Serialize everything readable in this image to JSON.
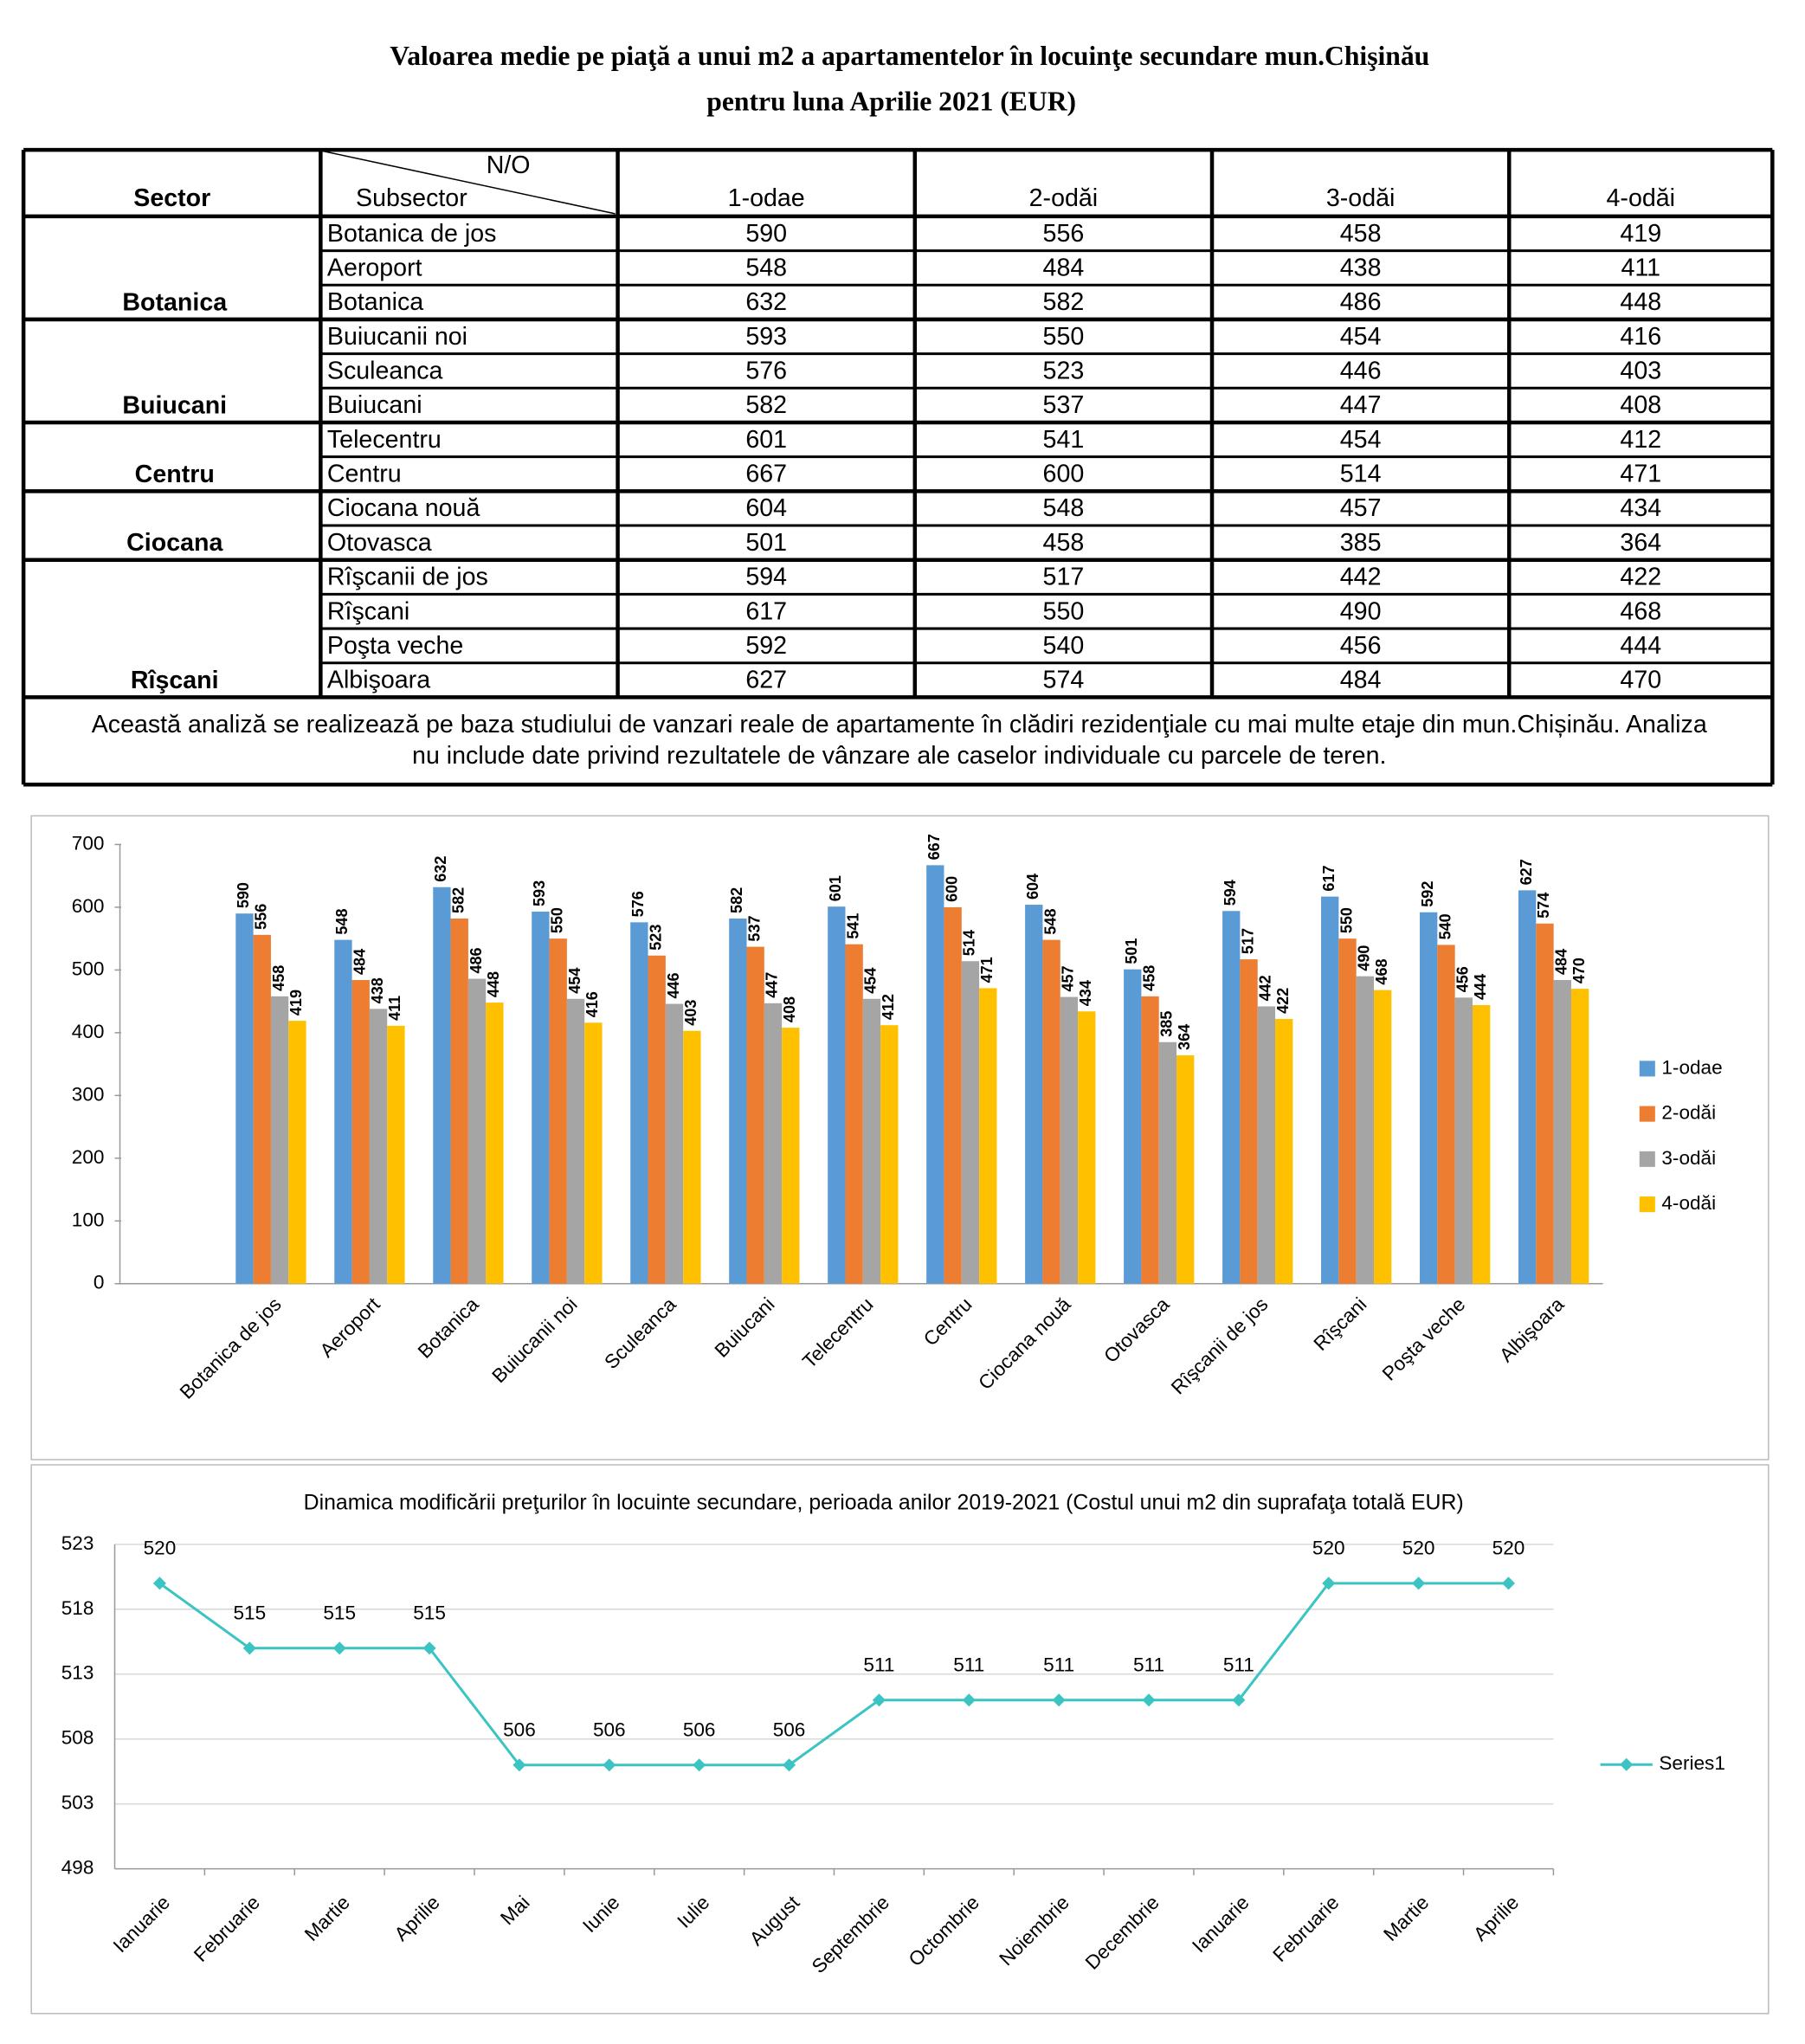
{
  "title": [
    "Valoarea medie pe piaţă a unui m2 a apartamentelor în locuinţe secundare  mun.Chişinău",
    "pentru luna Aprilie 2021 (EUR)"
  ],
  "table": {
    "header": {
      "sector": "Sector",
      "no": "N/O",
      "subsector": "Subsector",
      "columns": [
        "1-odae",
        "2-odăi",
        "3-odăi",
        "4-odăi"
      ]
    },
    "groups": [
      {
        "sector": "Botanica",
        "rows": [
          {
            "name": "Botanica de jos",
            "values": [
              590,
              556,
              458,
              419
            ]
          },
          {
            "name": "Aeroport",
            "values": [
              548,
              484,
              438,
              411
            ]
          },
          {
            "name": "Botanica",
            "values": [
              632,
              582,
              486,
              448
            ]
          }
        ]
      },
      {
        "sector": "Buiucani",
        "rows": [
          {
            "name": "Buiucanii noi",
            "values": [
              593,
              550,
              454,
              416
            ]
          },
          {
            "name": "Sculeanca",
            "values": [
              576,
              523,
              446,
              403
            ]
          },
          {
            "name": "Buiucani",
            "values": [
              582,
              537,
              447,
              408
            ]
          }
        ]
      },
      {
        "sector": "Centru",
        "rows": [
          {
            "name": "Telecentru",
            "values": [
              601,
              541,
              454,
              412
            ]
          },
          {
            "name": "Centru",
            "values": [
              667,
              600,
              514,
              471
            ]
          }
        ]
      },
      {
        "sector": "Ciocana",
        "rows": [
          {
            "name": "Ciocana nouă",
            "values": [
              604,
              548,
              457,
              434
            ]
          },
          {
            "name": "Otovasca",
            "values": [
              501,
              458,
              385,
              364
            ]
          }
        ]
      },
      {
        "sector": "Rîşcani",
        "rows": [
          {
            "name": "Rîşcanii de jos",
            "values": [
              594,
              517,
              442,
              422
            ]
          },
          {
            "name": "Rîşcani",
            "values": [
              617,
              550,
              490,
              468
            ]
          },
          {
            "name": "Poşta veche",
            "values": [
              592,
              540,
              456,
              444
            ]
          },
          {
            "name": "Albişoara",
            "values": [
              627,
              574,
              484,
              470
            ]
          }
        ]
      }
    ],
    "note": [
      "Această analiză se realizează pe baza studiului de vanzari reale de apartamente în clădiri rezidenţiale cu mai multe etaje din mun.Chișinău. Analiza",
      "nu include date privind rezultatele de vânzare ale caselor individuale cu parcele de teren."
    ]
  },
  "chart_data": [
    {
      "type": "bar",
      "categories": [
        "Botanica de jos",
        "Aeroport",
        "Botanica",
        "Buiucanii noi",
        "Sculeanca",
        "Buiucani",
        "Telecentru",
        "Centru",
        "Ciocana nouă",
        "Otovasca",
        "Rîşcanii de jos",
        "Rîşcani",
        "Poşta veche",
        "Albişoara"
      ],
      "series": [
        {
          "name": "1-odae",
          "color": "#5b9bd5",
          "values": [
            590,
            548,
            632,
            593,
            576,
            582,
            601,
            667,
            604,
            501,
            594,
            617,
            592,
            627
          ]
        },
        {
          "name": "2-odăi",
          "color": "#ed7d31",
          "values": [
            556,
            484,
            582,
            550,
            523,
            537,
            541,
            600,
            548,
            458,
            517,
            550,
            540,
            574
          ]
        },
        {
          "name": "3-odăi",
          "color": "#a5a5a5",
          "values": [
            458,
            438,
            486,
            454,
            446,
            447,
            454,
            514,
            457,
            385,
            442,
            490,
            456,
            484
          ]
        },
        {
          "name": "4-odăi",
          "color": "#ffc000",
          "values": [
            419,
            411,
            448,
            416,
            403,
            408,
            412,
            471,
            434,
            364,
            422,
            468,
            444,
            470
          ]
        }
      ],
      "ylim": [
        0,
        700
      ],
      "yticks": [
        0,
        100,
        200,
        300,
        400,
        500,
        600,
        700
      ],
      "legend": "right"
    },
    {
      "type": "line",
      "title": "Dinamica modificării preţurilor în locuinte secundare, perioada anilor 2019-2021 (Costul unui m2 din suprafaţa totală EUR)",
      "categories": [
        "Ianuarie",
        "Februarie",
        "Martie",
        "Aprilie",
        "Mai",
        "Iunie",
        "Iulie",
        "August",
        "Septembrie",
        "Octombrie",
        "Noiembrie",
        "Decembrie",
        "Ianuarie",
        "Februarie",
        "Martie",
        "Aprilie"
      ],
      "series": [
        {
          "name": "Series1",
          "color": "#3cc4c2",
          "values": [
            520,
            515,
            515,
            515,
            506,
            506,
            506,
            506,
            511,
            511,
            511,
            511,
            511,
            520,
            520,
            520
          ]
        }
      ],
      "ylim": [
        498,
        523
      ],
      "yticks": [
        498,
        503,
        508,
        513,
        518,
        523
      ],
      "grid": true,
      "legend": "right"
    }
  ]
}
